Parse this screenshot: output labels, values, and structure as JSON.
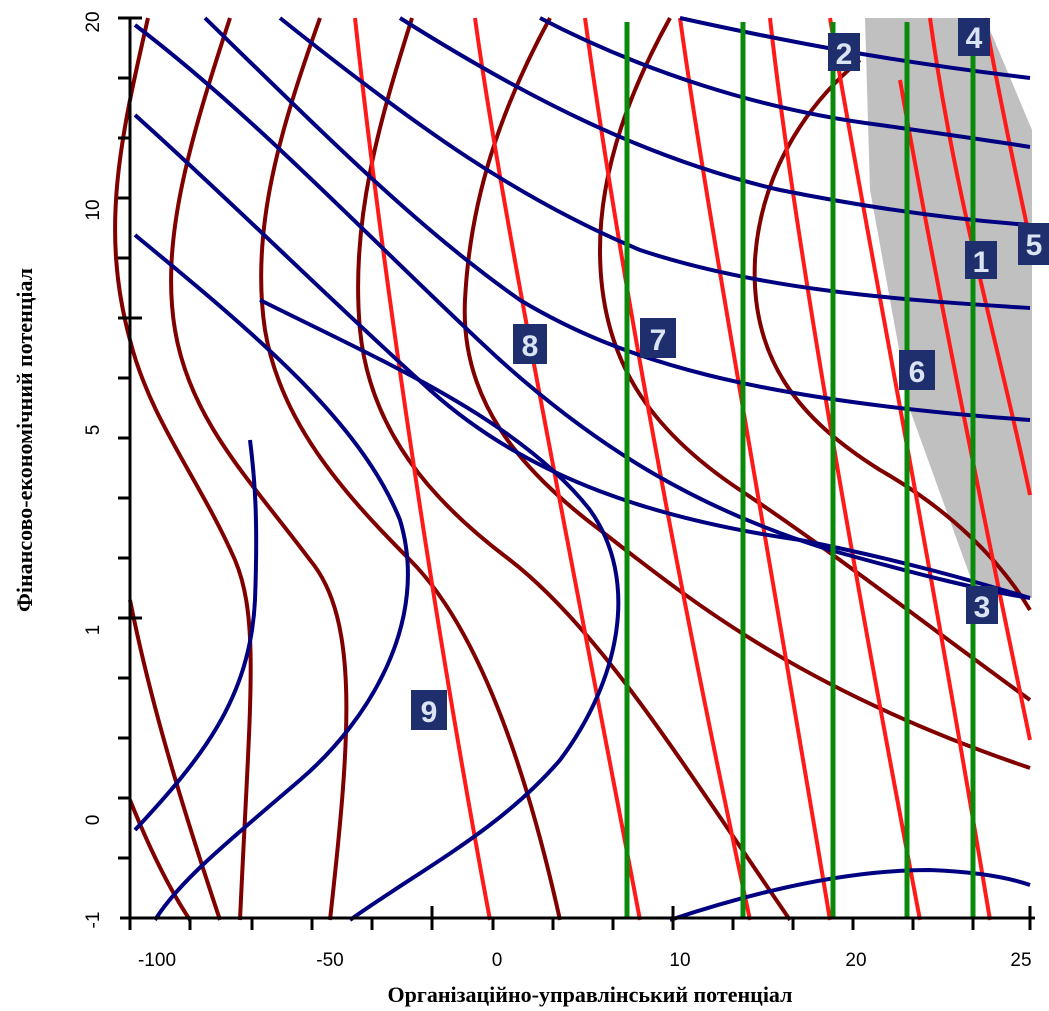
{
  "chart_data": {
    "type": "contour",
    "xlabel": "Організаційно-управлінський потенціал",
    "ylabel": "Фінансово-економічний потенціал",
    "x_tick_labels": [
      "-100",
      "-50",
      "0",
      "10",
      "20",
      "25"
    ],
    "y_tick_labels": [
      "20",
      "10",
      "5",
      "1",
      "0",
      "-1"
    ],
    "x_scale": "nonlinear",
    "y_scale": "nonlinear",
    "grid": false,
    "feasible_region": {
      "color": "#c0c0c0",
      "description": "shaded"
    },
    "colors": {
      "dark_red": "#800000",
      "red": "#ff1a1a",
      "navy": "#000080",
      "green": "#0a8a0a",
      "badge": "#1f2f6e"
    },
    "contour_labels": [
      "1",
      "2",
      "3",
      "4",
      "5",
      "6",
      "7",
      "8",
      "9"
    ]
  }
}
